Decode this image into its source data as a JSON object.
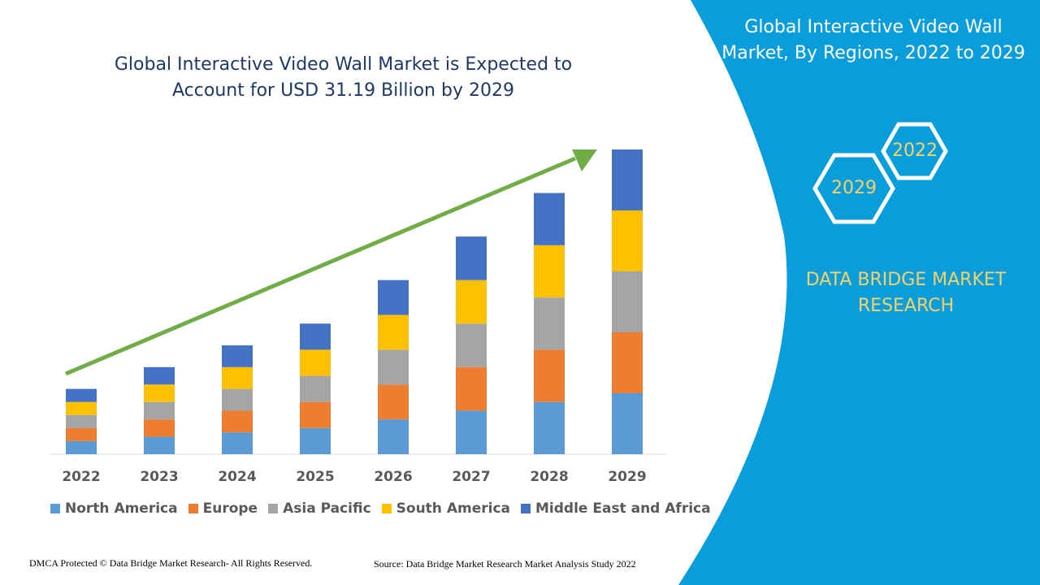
{
  "header": {
    "chart_title_line1": "Global Interactive Video Wall Market is Expected to",
    "chart_title_line2": "Account for USD 31.19 Billion by 2029"
  },
  "side_panel": {
    "title_line1": "Global Interactive Video Wall",
    "title_line2": "Market, By Regions, 2022 to 2029",
    "hex_start_label": "2022",
    "hex_end_label": "2029",
    "brand_line1": "DATA BRIDGE MARKET",
    "brand_line2": "RESEARCH",
    "background_color": "#0a9ddc",
    "accent_color": "#f5d36a"
  },
  "footer": {
    "left": "DMCA Protected © Data Bridge Market Research- All Rights Reserved.",
    "right": "Source: Data Bridge Market Research Market Analysis Study 2022"
  },
  "chart_data": {
    "type": "bar",
    "stacked": true,
    "categories": [
      "2022",
      "2023",
      "2024",
      "2025",
      "2026",
      "2027",
      "2028",
      "2029"
    ],
    "series": [
      {
        "name": "North America",
        "color": "#5b9bd5",
        "values": [
          3,
          4,
          5,
          6,
          8,
          10,
          12,
          14
        ]
      },
      {
        "name": "Europe",
        "color": "#ed7d31",
        "values": [
          3,
          4,
          5,
          6,
          8,
          10,
          12,
          14
        ]
      },
      {
        "name": "Asia Pacific",
        "color": "#a5a5a5",
        "values": [
          3,
          4,
          5,
          6,
          8,
          10,
          12,
          14
        ]
      },
      {
        "name": "South America",
        "color": "#ffc000",
        "values": [
          3,
          4,
          5,
          6,
          8,
          10,
          12,
          14
        ]
      },
      {
        "name": "Middle East and Africa",
        "color": "#4472c4",
        "values": [
          3,
          4,
          5,
          6,
          8,
          10,
          12,
          14
        ]
      }
    ],
    "ylim": [
      0,
      70
    ],
    "trend_arrow": true,
    "trend_color": "#70ad47",
    "grid": false,
    "legend_position": "bottom"
  }
}
